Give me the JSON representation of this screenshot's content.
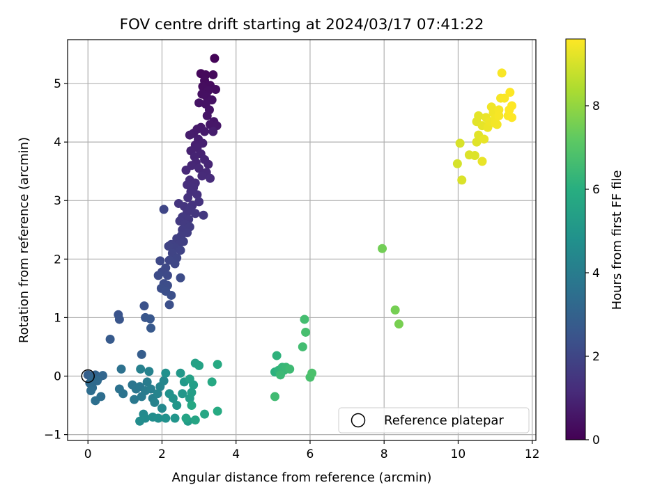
{
  "chart_data": {
    "type": "scatter",
    "title": "FOV centre drift starting at 2024/03/17 07:41:22",
    "xlabel": "Angular distance from reference (arcmin)",
    "ylabel": "Rotation from reference (arcmin)",
    "xlim": [
      -0.55,
      12.1
    ],
    "ylim": [
      -1.1,
      5.75
    ],
    "xticks": [
      0,
      2,
      4,
      6,
      8,
      10,
      12
    ],
    "yticks": [
      -1,
      0,
      1,
      2,
      3,
      4,
      5
    ],
    "grid": true,
    "colormap": "viridis",
    "colorbar": {
      "label": "Hours from first FF file",
      "min": 0,
      "max": 9.6,
      "ticks": [
        0,
        2,
        4,
        6,
        8
      ]
    },
    "reference": {
      "label": "Reference platepar",
      "x": 0,
      "y": 0
    },
    "legend_position": "lower-right",
    "points": [
      [
        3.42,
        5.43,
        0.1
      ],
      [
        3.05,
        5.17,
        0.2
      ],
      [
        3.18,
        5.15,
        0.22
      ],
      [
        3.38,
        5.15,
        0.25
      ],
      [
        3.15,
        5.05,
        0.28
      ],
      [
        3.3,
        4.97,
        0.3
      ],
      [
        3.1,
        4.95,
        0.32
      ],
      [
        3.45,
        4.9,
        0.35
      ],
      [
        3.25,
        4.88,
        0.38
      ],
      [
        3.08,
        4.82,
        0.4
      ],
      [
        3.2,
        4.78,
        0.42
      ],
      [
        3.35,
        4.72,
        0.45
      ],
      [
        3.0,
        4.67,
        0.48
      ],
      [
        3.18,
        4.65,
        0.5
      ],
      [
        3.28,
        4.55,
        0.52
      ],
      [
        3.22,
        4.45,
        0.55
      ],
      [
        3.4,
        4.35,
        0.58
      ],
      [
        3.3,
        4.3,
        0.6
      ],
      [
        3.48,
        4.28,
        0.62
      ],
      [
        3.05,
        4.25,
        0.65
      ],
      [
        2.95,
        4.22,
        0.68
      ],
      [
        3.15,
        4.18,
        0.7
      ],
      [
        2.85,
        4.15,
        0.72
      ],
      [
        2.75,
        4.12,
        0.75
      ],
      [
        3.38,
        4.18,
        0.78
      ],
      [
        2.98,
        4.05,
        0.8
      ],
      [
        2.9,
        3.95,
        0.82
      ],
      [
        3.1,
        3.98,
        0.85
      ],
      [
        2.95,
        3.9,
        0.88
      ],
      [
        2.78,
        3.85,
        0.9
      ],
      [
        3.05,
        3.8,
        0.92
      ],
      [
        2.88,
        3.75,
        0.95
      ],
      [
        3.15,
        3.7,
        0.98
      ],
      [
        2.92,
        3.65,
        1.0
      ],
      [
        3.25,
        3.62,
        1.02
      ],
      [
        2.8,
        3.6,
        1.05
      ],
      [
        3.0,
        3.55,
        1.08
      ],
      [
        2.65,
        3.52,
        1.1
      ],
      [
        3.2,
        3.48,
        1.12
      ],
      [
        3.08,
        3.42,
        1.15
      ],
      [
        3.3,
        3.38,
        1.18
      ],
      [
        2.75,
        3.35,
        1.2
      ],
      [
        2.9,
        3.3,
        1.22
      ],
      [
        2.68,
        3.27,
        1.25
      ],
      [
        2.85,
        3.22,
        1.28
      ],
      [
        2.78,
        3.15,
        1.3
      ],
      [
        2.95,
        3.1,
        1.32
      ],
      [
        2.7,
        3.05,
        1.35
      ],
      [
        3.0,
        2.98,
        1.38
      ],
      [
        2.82,
        2.92,
        1.4
      ],
      [
        2.6,
        2.9,
        1.42
      ],
      [
        2.45,
        2.95,
        1.45
      ],
      [
        2.75,
        2.85,
        1.48
      ],
      [
        2.68,
        2.8,
        1.5
      ],
      [
        2.9,
        2.78,
        1.52
      ],
      [
        3.12,
        2.75,
        1.55
      ],
      [
        2.55,
        2.72,
        1.58
      ],
      [
        2.72,
        2.68,
        1.6
      ],
      [
        2.48,
        2.65,
        1.62
      ],
      [
        2.62,
        2.6,
        1.65
      ],
      [
        2.75,
        2.55,
        1.68
      ],
      [
        2.55,
        2.5,
        1.7
      ],
      [
        2.68,
        2.45,
        1.72
      ],
      [
        2.52,
        2.4,
        1.75
      ],
      [
        2.4,
        2.35,
        1.78
      ],
      [
        2.58,
        2.3,
        1.8
      ],
      [
        2.45,
        2.25,
        1.82
      ],
      [
        2.25,
        2.25,
        1.85
      ],
      [
        2.35,
        2.2,
        1.88
      ],
      [
        2.18,
        2.22,
        1.9
      ],
      [
        2.5,
        2.15,
        1.92
      ],
      [
        2.28,
        2.1,
        1.95
      ],
      [
        2.4,
        2.02,
        1.98
      ],
      [
        2.05,
        2.85,
        2.0
      ],
      [
        2.2,
        1.98,
        2.02
      ],
      [
        2.35,
        1.92,
        2.05
      ],
      [
        1.95,
        1.97,
        2.08
      ],
      [
        2.1,
        1.85,
        2.1
      ],
      [
        2.0,
        1.78,
        2.12
      ],
      [
        2.15,
        1.72,
        2.15
      ],
      [
        1.9,
        1.72,
        2.18
      ],
      [
        2.5,
        1.68,
        2.2
      ],
      [
        2.05,
        1.58,
        2.22
      ],
      [
        2.15,
        1.55,
        2.25
      ],
      [
        1.98,
        1.5,
        2.28
      ],
      [
        2.1,
        1.45,
        2.3
      ],
      [
        2.25,
        1.38,
        2.32
      ],
      [
        2.2,
        1.22,
        2.35
      ],
      [
        1.52,
        1.2,
        2.4
      ],
      [
        0.82,
        1.05,
        2.45
      ],
      [
        0.85,
        0.97,
        2.5
      ],
      [
        1.55,
        1.0,
        2.55
      ],
      [
        1.68,
        0.98,
        2.6
      ],
      [
        1.7,
        0.82,
        2.65
      ],
      [
        0.6,
        0.63,
        2.7
      ],
      [
        1.45,
        0.37,
        2.8
      ],
      [
        0.0,
        0.02,
        2.9
      ],
      [
        0.1,
        0.0,
        3.0
      ],
      [
        0.2,
        0.02,
        3.05
      ],
      [
        0.3,
        -0.02,
        3.1
      ],
      [
        0.4,
        0.01,
        3.15
      ],
      [
        0.15,
        -0.05,
        3.2
      ],
      [
        0.05,
        -0.12,
        3.25
      ],
      [
        0.25,
        -0.08,
        3.3
      ],
      [
        0.12,
        -0.2,
        3.35
      ],
      [
        0.08,
        -0.25,
        3.4
      ],
      [
        0.35,
        -0.35,
        3.45
      ],
      [
        0.2,
        -0.42,
        3.5
      ],
      [
        0.9,
        0.12,
        3.55
      ],
      [
        0.85,
        -0.22,
        3.6
      ],
      [
        0.95,
        -0.3,
        3.65
      ],
      [
        1.2,
        -0.15,
        3.7
      ],
      [
        1.3,
        -0.22,
        3.75
      ],
      [
        1.4,
        -0.18,
        3.8
      ],
      [
        1.25,
        -0.4,
        3.85
      ],
      [
        1.45,
        -0.35,
        3.9
      ],
      [
        1.55,
        -0.25,
        3.95
      ],
      [
        1.6,
        -0.1,
        4.0
      ],
      [
        1.7,
        -0.22,
        4.05
      ],
      [
        1.75,
        -0.38,
        4.1
      ],
      [
        1.42,
        0.12,
        4.15
      ],
      [
        1.65,
        0.08,
        4.2
      ],
      [
        1.8,
        -0.45,
        4.25
      ],
      [
        1.88,
        -0.3,
        4.3
      ],
      [
        1.95,
        -0.18,
        4.35
      ],
      [
        2.05,
        -0.08,
        4.4
      ],
      [
        2.0,
        -0.55,
        4.45
      ],
      [
        1.5,
        -0.65,
        4.5
      ],
      [
        1.55,
        -0.72,
        4.55
      ],
      [
        1.4,
        -0.77,
        4.6
      ],
      [
        1.75,
        -0.7,
        4.65
      ],
      [
        1.9,
        -0.72,
        4.7
      ],
      [
        2.1,
        0.05,
        4.75
      ],
      [
        2.1,
        -0.72,
        4.8
      ],
      [
        2.2,
        -0.3,
        4.85
      ],
      [
        2.3,
        -0.38,
        4.9
      ],
      [
        2.35,
        -0.72,
        4.95
      ],
      [
        2.4,
        -0.5,
        5.0
      ],
      [
        2.55,
        -0.3,
        5.05
      ],
      [
        2.5,
        0.05,
        5.1
      ],
      [
        2.6,
        -0.1,
        5.15
      ],
      [
        2.7,
        -0.77,
        5.2
      ],
      [
        2.75,
        -0.38,
        5.25
      ],
      [
        2.8,
        -0.28,
        5.3
      ],
      [
        2.85,
        -0.15,
        5.35
      ],
      [
        2.75,
        -0.05,
        5.4
      ],
      [
        2.9,
        0.22,
        5.45
      ],
      [
        3.0,
        0.18,
        5.5
      ],
      [
        2.65,
        -0.72,
        5.55
      ],
      [
        2.9,
        -0.75,
        5.6
      ],
      [
        3.15,
        -0.65,
        5.65
      ],
      [
        2.8,
        -0.5,
        5.7
      ],
      [
        3.35,
        -0.1,
        5.75
      ],
      [
        3.5,
        0.2,
        5.8
      ],
      [
        3.5,
        -0.6,
        5.85
      ],
      [
        5.05,
        0.07,
        6.1
      ],
      [
        5.1,
        0.35,
        6.15
      ],
      [
        5.15,
        0.1,
        6.2
      ],
      [
        5.2,
        0.05,
        6.25
      ],
      [
        5.25,
        0.15,
        6.3
      ],
      [
        5.3,
        0.1,
        6.35
      ],
      [
        5.35,
        0.15,
        6.4
      ],
      [
        5.2,
        0.02,
        6.45
      ],
      [
        5.45,
        0.12,
        6.5
      ],
      [
        5.05,
        -0.35,
        6.55
      ],
      [
        5.8,
        0.5,
        6.6
      ],
      [
        5.85,
        0.97,
        6.65
      ],
      [
        5.88,
        0.75,
        6.7
      ],
      [
        6.0,
        -0.02,
        6.75
      ],
      [
        6.05,
        0.05,
        6.8
      ],
      [
        7.95,
        2.18,
        7.5
      ],
      [
        8.3,
        1.13,
        7.55
      ],
      [
        8.4,
        0.89,
        7.6
      ],
      [
        9.98,
        3.63,
        9.0
      ],
      [
        10.05,
        3.98,
        9.05
      ],
      [
        10.1,
        3.35,
        9.08
      ],
      [
        10.3,
        3.78,
        9.1
      ],
      [
        10.45,
        3.77,
        9.12
      ],
      [
        10.5,
        4.0,
        9.15
      ],
      [
        10.55,
        4.12,
        9.18
      ],
      [
        10.5,
        4.35,
        9.2
      ],
      [
        10.55,
        4.45,
        9.22
      ],
      [
        10.65,
        4.28,
        9.25
      ],
      [
        10.7,
        4.05,
        9.28
      ],
      [
        10.65,
        3.67,
        9.3
      ],
      [
        10.75,
        4.42,
        9.32
      ],
      [
        10.8,
        4.25,
        9.35
      ],
      [
        10.85,
        4.35,
        9.38
      ],
      [
        10.9,
        4.6,
        9.4
      ],
      [
        10.95,
        4.5,
        9.42
      ],
      [
        11.0,
        4.4,
        9.44
      ],
      [
        11.05,
        4.3,
        9.46
      ],
      [
        11.1,
        4.55,
        9.48
      ],
      [
        11.15,
        4.75,
        9.5
      ],
      [
        11.18,
        5.18,
        9.52
      ],
      [
        11.25,
        4.75,
        9.54
      ],
      [
        11.35,
        4.45,
        9.56
      ],
      [
        11.4,
        4.85,
        9.58
      ],
      [
        11.45,
        4.62,
        9.6
      ],
      [
        11.38,
        4.55,
        9.6
      ],
      [
        11.45,
        4.42,
        9.6
      ],
      [
        11.0,
        4.32,
        9.45
      ],
      [
        11.1,
        4.45,
        9.5
      ]
    ]
  }
}
